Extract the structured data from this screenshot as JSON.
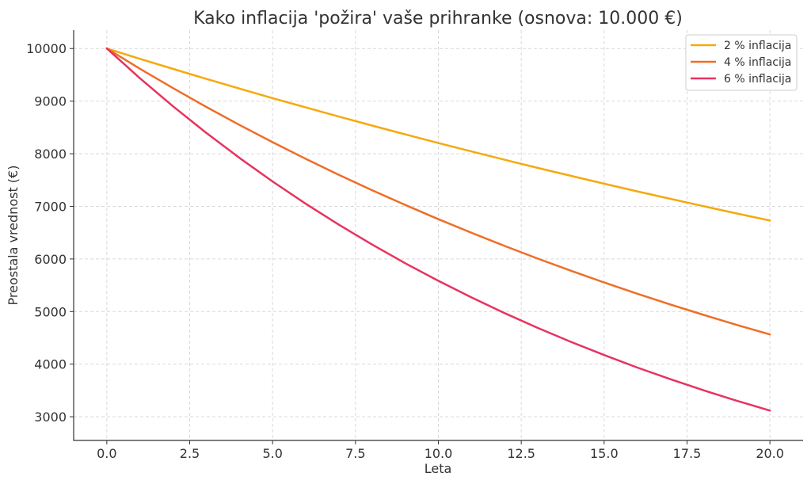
{
  "chart_data": {
    "type": "line",
    "title": "Kako inflacija 'požira' vaše prihranke (osnova: 10.000 €)",
    "xlabel": "Leta",
    "ylabel": "Preostala vrednost (€)",
    "xlim": [
      -1,
      21
    ],
    "ylim": [
      2550,
      10350
    ],
    "x_ticks": [
      0,
      2.5,
      5,
      7.5,
      10,
      12.5,
      15,
      17.5,
      20
    ],
    "x_tick_labels": [
      "0.0",
      "2.5",
      "5.0",
      "7.5",
      "10.0",
      "12.5",
      "15.0",
      "17.5",
      "20.0"
    ],
    "y_ticks": [
      3000,
      4000,
      5000,
      6000,
      7000,
      8000,
      9000,
      10000
    ],
    "y_tick_labels": [
      "3000",
      "4000",
      "5000",
      "6000",
      "7000",
      "8000",
      "9000",
      "10000"
    ],
    "grid": true,
    "legend_position": "top-right",
    "x": [
      0,
      1,
      2,
      3,
      4,
      5,
      6,
      7,
      8,
      9,
      10,
      11,
      12,
      13,
      14,
      15,
      16,
      17,
      18,
      19,
      20
    ],
    "series": [
      {
        "name": "2 % inflacija",
        "color": "#f5a90f",
        "values": [
          10000,
          9804,
          9612,
          9423,
          9238,
          9057,
          8880,
          8706,
          8535,
          8368,
          8203,
          8043,
          7885,
          7730,
          7579,
          7430,
          7284,
          7142,
          7002,
          6864,
          6730
        ]
      },
      {
        "name": "4 % inflacija",
        "color": "#ee6e27",
        "values": [
          10000,
          9615,
          9246,
          8890,
          8548,
          8219,
          7903,
          7599,
          7307,
          7026,
          6756,
          6496,
          6246,
          6006,
          5775,
          5553,
          5339,
          5134,
          4936,
          4746,
          4564
        ]
      },
      {
        "name": "6 % inflacija",
        "color": "#e8335f",
        "values": [
          10000,
          9434,
          8900,
          8396,
          7921,
          7473,
          7050,
          6651,
          6274,
          5919,
          5584,
          5268,
          4970,
          4688,
          4423,
          4173,
          3936,
          3714,
          3503,
          3305,
          3118
        ]
      }
    ]
  }
}
